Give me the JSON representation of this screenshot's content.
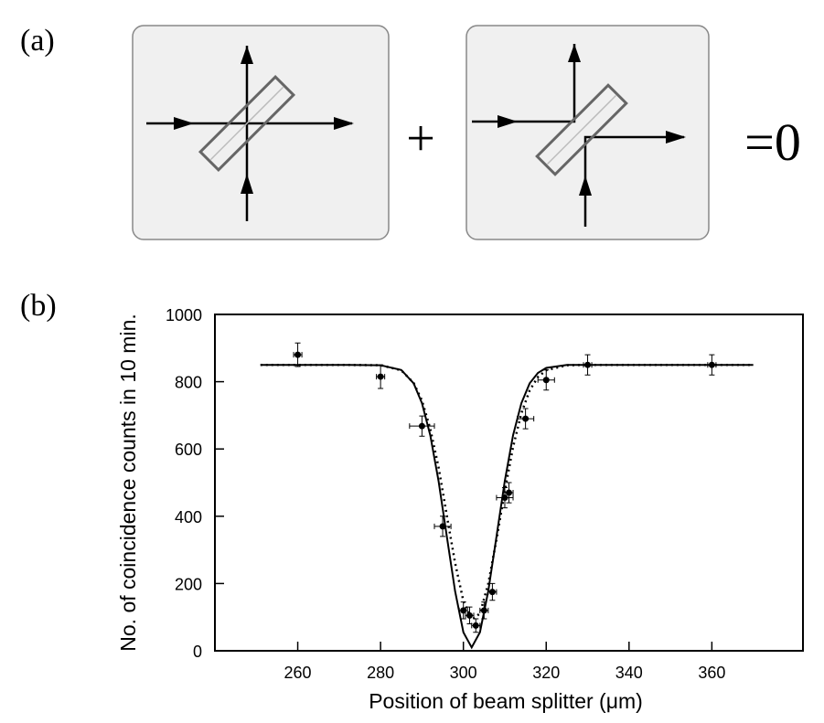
{
  "panels": {
    "a": "(a)",
    "b": "(b)"
  },
  "diagram": {
    "plus": "+",
    "result": "=0"
  },
  "chart_data": {
    "type": "scatter",
    "x_label": "Position of beam splitter (μm)",
    "y_label": "No. of coincidence counts in 10 min.",
    "xlim": [
      240,
      382
    ],
    "ylim": [
      0,
      1000
    ],
    "xticks": [
      260,
      280,
      300,
      320,
      340,
      360
    ],
    "yticks": [
      0,
      200,
      400,
      600,
      800,
      1000
    ],
    "grid": false,
    "series": [
      {
        "style": "points",
        "color": "#000000",
        "x": [
          260,
          280,
          290,
          295,
          300,
          301.5,
          303,
          305,
          307,
          310,
          311,
          315,
          320,
          330,
          360
        ],
        "values": [
          880,
          815,
          668,
          370,
          120,
          105,
          75,
          120,
          175,
          455,
          470,
          690,
          805,
          850,
          850
        ],
        "y_errors": [
          35,
          35,
          30,
          30,
          25,
          25,
          20,
          25,
          25,
          30,
          30,
          30,
          30,
          30,
          30
        ],
        "x_errors": [
          1,
          1,
          3,
          2,
          1,
          1,
          1,
          1,
          1,
          2,
          1,
          2,
          2,
          1,
          1
        ]
      },
      {
        "style": "solid",
        "color": "#000000",
        "x": [
          251,
          260,
          270,
          280,
          285,
          288,
          290,
          292,
          294,
          296,
          298,
          300,
          302,
          304,
          306,
          308,
          310,
          312,
          314,
          316,
          318,
          320,
          325,
          330,
          340,
          370
        ],
        "values": [
          850,
          850,
          850,
          849,
          835,
          795,
          736,
          641,
          505,
          340,
          177,
          55,
          10,
          55,
          177,
          340,
          505,
          641,
          736,
          795,
          826,
          841,
          850,
          850,
          850,
          850
        ]
      },
      {
        "style": "dotted",
        "color": "#000000",
        "x": [
          251,
          260,
          270,
          280,
          285,
          288,
          290,
          292,
          294,
          296,
          298,
          300,
          302,
          304,
          306,
          308,
          310,
          312,
          314,
          316,
          318,
          320,
          325,
          330,
          340,
          370
        ],
        "values": [
          850,
          850,
          850,
          849,
          834,
          796,
          744,
          660,
          546,
          402,
          261,
          148,
          92,
          111,
          199,
          331,
          476,
          606,
          706,
          774,
          814,
          834,
          849,
          850,
          850,
          850
        ]
      }
    ]
  }
}
